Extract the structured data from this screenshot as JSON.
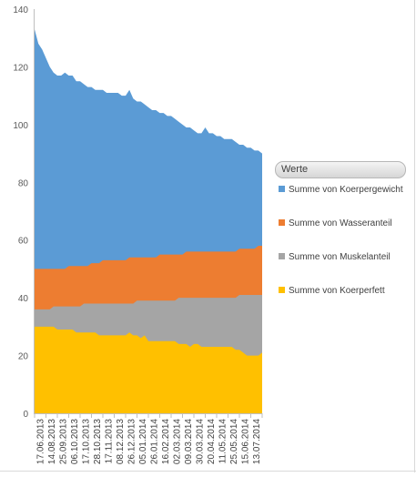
{
  "chart_data": {
    "type": "area",
    "stacked": false,
    "ylim": [
      0,
      140
    ],
    "yticks": [
      0,
      20,
      40,
      60,
      80,
      100,
      120,
      140
    ],
    "grid": false,
    "legend_position": "right",
    "legend_title": "Werte",
    "x_tick_labels": [
      "17.06.2013",
      "14.08.2013",
      "25.09.2013",
      "06.10.2013",
      "17.10.2013",
      "28.10.2013",
      "17.11.2013",
      "08.12.2013",
      "26.12.2013",
      "05.01.2014",
      "26.01.2014",
      "16.02.2014",
      "02.03.2014",
      "09.03.2014",
      "30.03.2014",
      "20.04.2014",
      "11.05.2014",
      "25.05.2014",
      "15.06.2014",
      "13.07.2014"
    ],
    "series": [
      {
        "name": "Summe von Koerpergewicht",
        "color": "#5b9bd5",
        "values": [
          133,
          128,
          126,
          123,
          120,
          118,
          117,
          117,
          118,
          117,
          117,
          115,
          115,
          114,
          113,
          113,
          112,
          112,
          112,
          111,
          111,
          111,
          111,
          110,
          110,
          112,
          109,
          108,
          108,
          107,
          106,
          105,
          105,
          104,
          104,
          103,
          103,
          102,
          101,
          100,
          99,
          99,
          98,
          97,
          97,
          99,
          97,
          97,
          96,
          96,
          95,
          95,
          95,
          94,
          93,
          93,
          92,
          92,
          91,
          91,
          90
        ]
      },
      {
        "name": "Summe von Wasseranteil",
        "color": "#ed7d31",
        "values": [
          50,
          50,
          50,
          50,
          50,
          50,
          50,
          50,
          50,
          51,
          51,
          51,
          51,
          51,
          51,
          52,
          52,
          52,
          53,
          53,
          53,
          53,
          53,
          53,
          53,
          54,
          54,
          54,
          54,
          54,
          54,
          54,
          54,
          55,
          55,
          55,
          55,
          55,
          55,
          55,
          56,
          56,
          56,
          56,
          56,
          56,
          56,
          56,
          56,
          56,
          56,
          56,
          56,
          56,
          57,
          57,
          57,
          57,
          57,
          58,
          58
        ]
      },
      {
        "name": "Summe von Muskelanteil",
        "color": "#a5a5a5",
        "values": [
          36,
          36,
          36,
          36,
          36,
          37,
          37,
          37,
          37,
          37,
          37,
          37,
          37,
          38,
          38,
          38,
          38,
          38,
          38,
          38,
          38,
          38,
          38,
          38,
          38,
          38,
          38,
          39,
          39,
          39,
          39,
          39,
          39,
          39,
          39,
          39,
          39,
          39,
          40,
          40,
          40,
          40,
          40,
          40,
          40,
          40,
          40,
          40,
          40,
          40,
          40,
          40,
          40,
          40,
          41,
          41,
          41,
          41,
          41,
          41,
          41
        ]
      },
      {
        "name": "Summe von Koerperfett",
        "color": "#ffc000",
        "values": [
          30,
          30,
          30,
          30,
          30,
          30,
          29,
          29,
          29,
          29,
          29,
          28,
          28,
          28,
          28,
          28,
          28,
          27,
          27,
          27,
          27,
          27,
          27,
          27,
          27,
          28,
          27,
          27,
          26,
          27,
          25,
          25,
          25,
          25,
          25,
          25,
          25,
          25,
          24,
          24,
          24,
          23,
          24,
          24,
          23,
          23,
          23,
          23,
          23,
          23,
          23,
          23,
          23,
          22,
          22,
          21,
          20,
          20,
          20,
          20,
          21
        ]
      }
    ]
  }
}
